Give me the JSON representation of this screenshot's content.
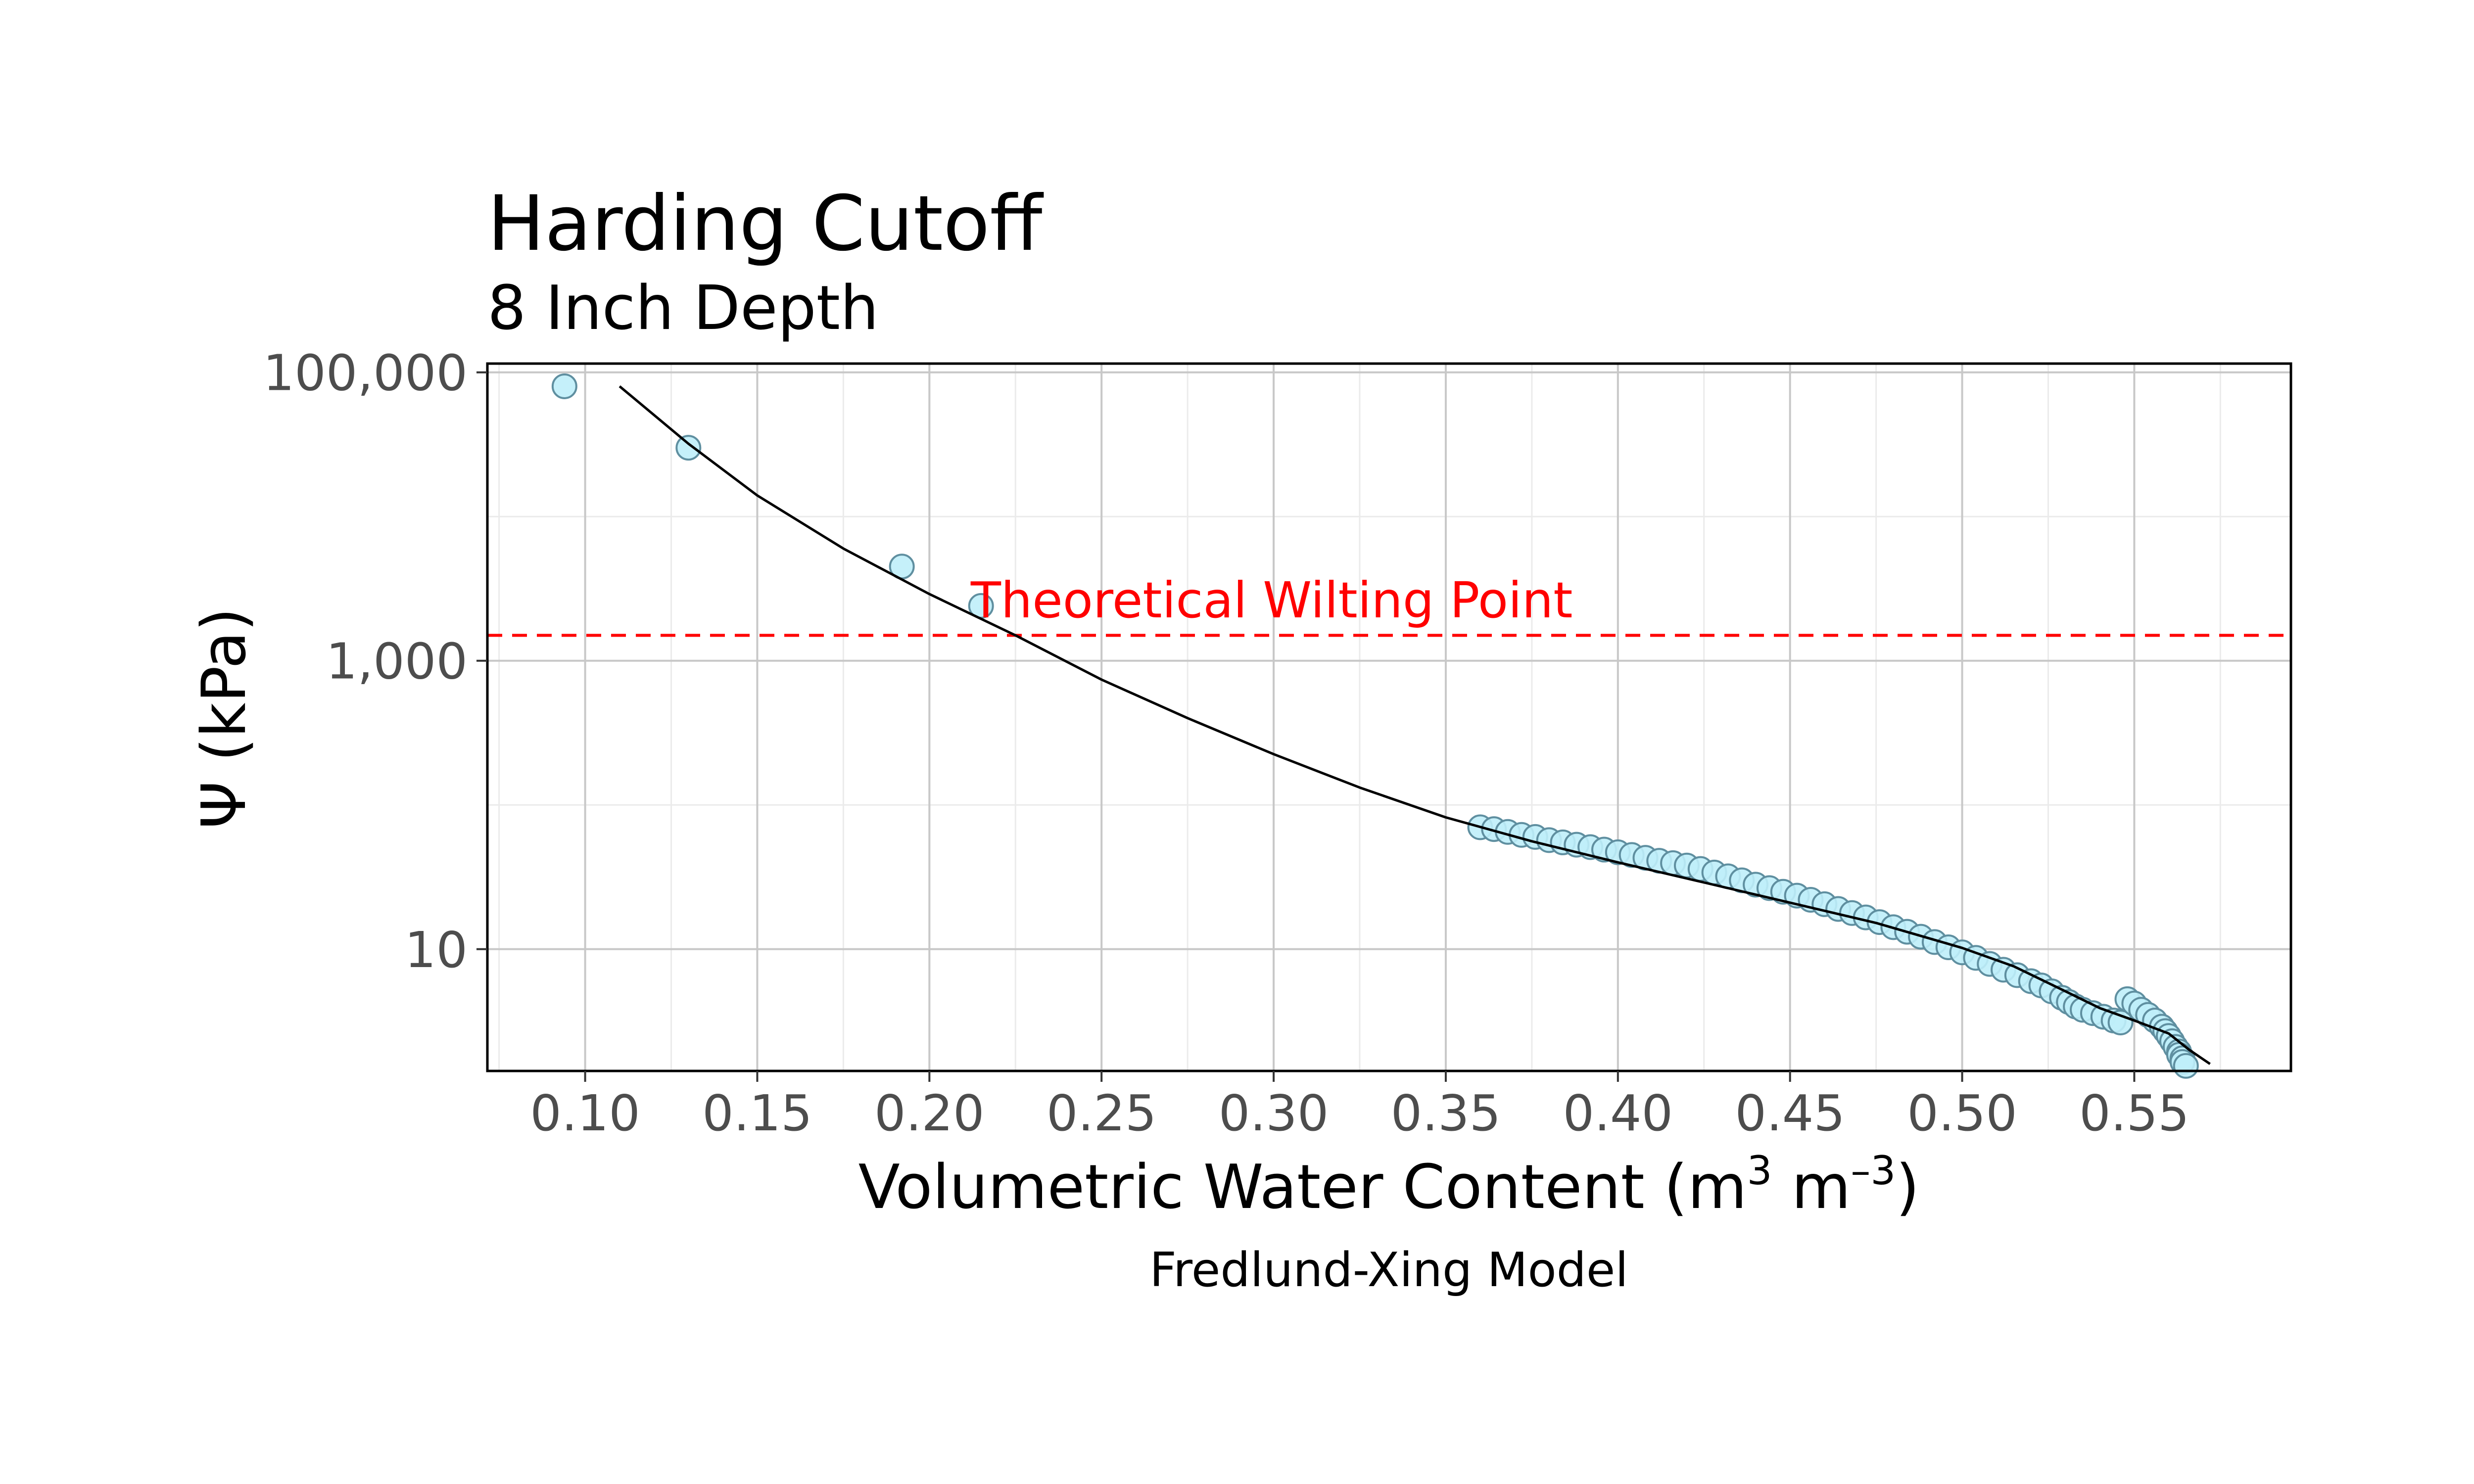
{
  "chart_data": {
    "type": "scatter",
    "title": "Harding Cutoff",
    "subtitle": "8 Inch Depth",
    "xlabel": "Volumetric Water Content (m",
    "xlabel_sup1": "3",
    "xlabel_mid": " m",
    "xlabel_sup2": "–3",
    "xlabel_end": ")",
    "ylabel": "Ψ (kPa)",
    "caption": "Fredlund-Xing Model",
    "x_scale": "linear",
    "y_scale": "log",
    "xlim": [
      0.0716,
      0.5955
    ],
    "ylim": [
      1.43,
      115000
    ],
    "x_ticks": [
      0.1,
      0.15,
      0.2,
      0.25,
      0.3,
      0.35,
      0.4,
      0.45,
      0.5,
      0.55
    ],
    "x_tick_labels": [
      "0.10",
      "0.15",
      "0.20",
      "0.25",
      "0.30",
      "0.35",
      "0.40",
      "0.45",
      "0.50",
      "0.55"
    ],
    "y_ticks": [
      10,
      1000,
      100000
    ],
    "y_tick_labels": [
      "10",
      "1,000",
      "100,000"
    ],
    "grid": true,
    "legend": "none",
    "colors": {
      "points_fill": "#bfeefa",
      "points_stroke": "#5f8fa0",
      "fit_line": "#000000",
      "wilting_line": "#ff0000",
      "grid_major": "#c8c8c8",
      "grid_minor": "#ebebeb"
    },
    "annotation": {
      "text": "Theoretical Wilting Point",
      "x": 0.212,
      "y": 2000
    },
    "wilting_point": 1500,
    "series": [
      {
        "kind": "points",
        "x": [
          0.094,
          0.13,
          0.192,
          0.215,
          0.36,
          0.364,
          0.368,
          0.372,
          0.376,
          0.38,
          0.384,
          0.388,
          0.392,
          0.396,
          0.4,
          0.404,
          0.408,
          0.412,
          0.416,
          0.42,
          0.424,
          0.428,
          0.432,
          0.436,
          0.44,
          0.444,
          0.448,
          0.452,
          0.456,
          0.46,
          0.464,
          0.468,
          0.472,
          0.476,
          0.48,
          0.484,
          0.488,
          0.492,
          0.496,
          0.5,
          0.504,
          0.508,
          0.512,
          0.516,
          0.52,
          0.523,
          0.526,
          0.529,
          0.531,
          0.533,
          0.535,
          0.538,
          0.541,
          0.544,
          0.546,
          0.548,
          0.55,
          0.552,
          0.554,
          0.556,
          0.558,
          0.559,
          0.56,
          0.561,
          0.562,
          0.563,
          0.563,
          0.564,
          0.564,
          0.565
        ],
        "y": [
          80000,
          30000,
          4500,
          2400,
          70,
          68,
          65,
          62,
          60,
          57,
          55,
          53,
          51,
          49,
          47,
          45,
          43,
          41,
          39.5,
          38,
          36,
          34,
          32,
          30,
          28,
          26.5,
          25,
          23.5,
          22,
          20.5,
          19,
          17.8,
          16.6,
          15.4,
          14.2,
          13.2,
          12.2,
          11.2,
          10.3,
          9.5,
          8.7,
          7.9,
          7.2,
          6.6,
          6.0,
          5.6,
          5.1,
          4.6,
          4.3,
          4.0,
          3.8,
          3.6,
          3.4,
          3.2,
          3.1,
          4.5,
          4.2,
          3.8,
          3.5,
          3.2,
          2.9,
          2.7,
          2.5,
          2.3,
          2.1,
          1.95,
          1.85,
          1.75,
          1.65,
          1.55
        ]
      },
      {
        "kind": "line",
        "x": [
          0.11,
          0.13,
          0.15,
          0.175,
          0.2,
          0.225,
          0.25,
          0.275,
          0.3,
          0.325,
          0.35,
          0.375,
          0.4,
          0.425,
          0.45,
          0.475,
          0.5,
          0.515,
          0.53,
          0.54,
          0.55,
          0.56,
          0.566,
          0.572
        ],
        "y": [
          80000,
          32000,
          14000,
          6000,
          2900,
          1500,
          740,
          400,
          225,
          132,
          82,
          56,
          40,
          29,
          21,
          15.2,
          10.2,
          7.6,
          5.1,
          3.9,
          3.2,
          2.6,
          2.0,
          1.6
        ]
      }
    ]
  }
}
